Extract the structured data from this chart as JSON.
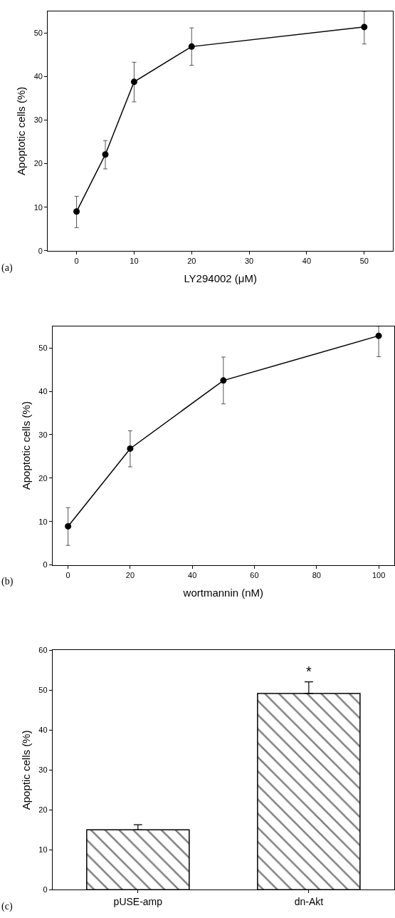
{
  "chart_data": [
    {
      "type": "line",
      "xlabel": "LY294002 (μM)",
      "ylabel": "Apoptotic cells (%)",
      "annotations": [
        "(a)"
      ],
      "x": [
        0,
        5,
        10,
        20,
        50
      ],
      "xlim": [
        -5,
        55
      ],
      "xticks": [
        0,
        10,
        20,
        30,
        40,
        50
      ],
      "ylim": [
        0,
        55
      ],
      "yticks": [
        0,
        10,
        20,
        30,
        40,
        50
      ],
      "marker": "circle",
      "line_style": "solid",
      "grid": false,
      "series": [
        {
          "color": "#000000",
          "values": [
            9.0,
            22.1,
            38.8,
            46.9,
            51.4
          ],
          "errors": [
            [
              5.3,
              12.5
            ],
            [
              18.8,
              25.3
            ],
            [
              34.2,
              43.3
            ],
            [
              42.6,
              51.2
            ],
            [
              47.5,
              55.0
            ]
          ]
        }
      ]
    },
    {
      "type": "line",
      "xlabel": "wortmannin (nM)",
      "ylabel": "Apoptotic cells (%)",
      "annotations": [
        "(b)"
      ],
      "x": [
        0,
        20,
        50,
        100
      ],
      "xlim": [
        -5,
        105
      ],
      "xticks": [
        0,
        20,
        40,
        60,
        80,
        100
      ],
      "ylim": [
        0,
        55
      ],
      "yticks": [
        0,
        10,
        20,
        30,
        40,
        50
      ],
      "marker": "circle",
      "line_style": "solid",
      "grid": false,
      "series": [
        {
          "color": "#000000",
          "values": [
            8.9,
            26.8,
            42.5,
            52.8
          ],
          "errors": [
            [
              4.5,
              13.2
            ],
            [
              22.6,
              30.9
            ],
            [
              37.1,
              47.9
            ],
            [
              48.0,
              55.0
            ]
          ]
        }
      ]
    },
    {
      "type": "bar",
      "ylabel": "Apoptic cells (%)",
      "annotations": [
        "(c)",
        "*"
      ],
      "categories": [
        "pUSE-amp",
        "dn-Akt"
      ],
      "ylim": [
        0,
        60
      ],
      "yticks": [
        0,
        10,
        20,
        30,
        40,
        50,
        60
      ],
      "grid": false,
      "series": [
        {
          "color": "#000000",
          "values": [
            15.0,
            49.2
          ],
          "errors": [
            [
              15.0,
              16.3
            ],
            [
              49.2,
              52.1
            ]
          ]
        }
      ]
    }
  ]
}
